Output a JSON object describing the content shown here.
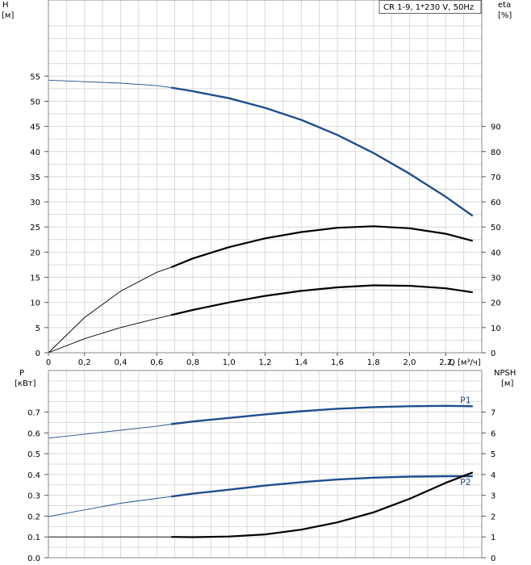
{
  "chart_data": [
    {
      "type": "line",
      "legend": "CR 1-9, 1*230 V, 50Hz",
      "x_label": "Q [м³/ч]",
      "x_ticks": [
        "0",
        "0,2",
        "0,4",
        "0,6",
        "0,8",
        "1,0",
        "1,2",
        "1,4",
        "1,6",
        "1,8",
        "2,0",
        "2,2"
      ],
      "xlim": [
        0,
        2.4
      ],
      "grid": true,
      "y_left": {
        "label_line1": "H",
        "label_line2": "[м]",
        "ticks": [
          "0",
          "5",
          "10",
          "15",
          "20",
          "25",
          "30",
          "35",
          "40",
          "45",
          "50",
          "55"
        ],
        "range": [
          0,
          55
        ]
      },
      "y_right": {
        "label_line1": "eta",
        "label_line2": "[%]",
        "ticks": [
          "0",
          "10",
          "20",
          "30",
          "40",
          "50",
          "60",
          "70",
          "80",
          "90"
        ],
        "range": [
          0,
          90
        ]
      },
      "series": [
        {
          "axis": "left",
          "color": "#1f4e8c",
          "points": [
            [
              0,
              54.2
            ],
            [
              0.2,
              53.9
            ],
            [
              0.4,
              53.6
            ],
            [
              0.6,
              53.1
            ],
            [
              0.68,
              52.7
            ],
            [
              0.8,
              52.0
            ],
            [
              1.0,
              50.6
            ],
            [
              1.2,
              48.7
            ],
            [
              1.4,
              46.3
            ],
            [
              1.6,
              43.3
            ],
            [
              1.8,
              39.7
            ],
            [
              2.0,
              35.6
            ],
            [
              2.2,
              31.0
            ],
            [
              2.35,
              27.2
            ]
          ]
        },
        {
          "axis": "right",
          "color": "#000000",
          "points": [
            [
              0,
              0
            ],
            [
              0.2,
              14
            ],
            [
              0.4,
              24.5
            ],
            [
              0.6,
              32
            ],
            [
              0.68,
              34
            ],
            [
              0.8,
              37.5
            ],
            [
              1.0,
              42
            ],
            [
              1.2,
              45.5
            ],
            [
              1.4,
              48
            ],
            [
              1.6,
              49.7
            ],
            [
              1.8,
              50.3
            ],
            [
              2.0,
              49.5
            ],
            [
              2.2,
              47.3
            ],
            [
              2.35,
              44.5
            ]
          ]
        },
        {
          "axis": "left",
          "color": "#000000",
          "points": [
            [
              0,
              0
            ],
            [
              0.2,
              2.8
            ],
            [
              0.4,
              5.0
            ],
            [
              0.6,
              6.8
            ],
            [
              0.68,
              7.5
            ],
            [
              0.8,
              8.5
            ],
            [
              1.0,
              10.0
            ],
            [
              1.2,
              11.3
            ],
            [
              1.4,
              12.3
            ],
            [
              1.6,
              13.0
            ],
            [
              1.8,
              13.4
            ],
            [
              2.0,
              13.3
            ],
            [
              2.2,
              12.8
            ],
            [
              2.35,
              12.0
            ]
          ]
        }
      ]
    },
    {
      "type": "line",
      "x_ticks": [
        "0",
        "0,2",
        "0,4",
        "0,6",
        "0,8",
        "1,0",
        "1,2",
        "1,4",
        "1,6",
        "1,8",
        "2,0",
        "2,2"
      ],
      "xlim": [
        0,
        2.4
      ],
      "grid": true,
      "y_left": {
        "label_line1": "P",
        "label_line2": "[кВт]",
        "ticks": [
          "0.0",
          "0.1",
          "0.2",
          "0.3",
          "0.4",
          "0.5",
          "0.6",
          "0.7"
        ],
        "range": [
          0,
          0.7
        ]
      },
      "y_right": {
        "label_line1": "NPSH",
        "label_line2": "[м]",
        "ticks": [
          "0",
          "1",
          "2",
          "3",
          "4",
          "5",
          "6",
          "7"
        ],
        "range": [
          0,
          7
        ]
      },
      "series": [
        {
          "name": "P1",
          "axis": "left",
          "color": "#1f4e8c",
          "points": [
            [
              0,
              0.575
            ],
            [
              0.2,
              0.594
            ],
            [
              0.4,
              0.613
            ],
            [
              0.6,
              0.632
            ],
            [
              0.68,
              0.642
            ],
            [
              0.8,
              0.655
            ],
            [
              1.0,
              0.672
            ],
            [
              1.2,
              0.689
            ],
            [
              1.4,
              0.704
            ],
            [
              1.6,
              0.716
            ],
            [
              1.8,
              0.724
            ],
            [
              2.0,
              0.728
            ],
            [
              2.2,
              0.73
            ],
            [
              2.35,
              0.728
            ]
          ]
        },
        {
          "name": "P2",
          "axis": "left",
          "color": "#1f4e8c",
          "points": [
            [
              0,
              0.198
            ],
            [
              0.2,
              0.23
            ],
            [
              0.4,
              0.262
            ],
            [
              0.6,
              0.285
            ],
            [
              0.68,
              0.294
            ],
            [
              0.8,
              0.308
            ],
            [
              1.0,
              0.327
            ],
            [
              1.2,
              0.347
            ],
            [
              1.4,
              0.363
            ],
            [
              1.6,
              0.376
            ],
            [
              1.8,
              0.385
            ],
            [
              2.0,
              0.39
            ],
            [
              2.2,
              0.392
            ],
            [
              2.35,
              0.392
            ]
          ]
        },
        {
          "axis": "right",
          "color": "#000000",
          "points": [
            [
              0,
              1.0
            ],
            [
              0.2,
              1.0
            ],
            [
              0.4,
              1.0
            ],
            [
              0.6,
              1.0
            ],
            [
              0.68,
              1.0
            ],
            [
              0.8,
              0.99
            ],
            [
              1.0,
              1.02
            ],
            [
              1.2,
              1.12
            ],
            [
              1.4,
              1.35
            ],
            [
              1.6,
              1.7
            ],
            [
              1.8,
              2.18
            ],
            [
              2.0,
              2.83
            ],
            [
              2.2,
              3.6
            ],
            [
              2.35,
              4.1
            ]
          ]
        }
      ]
    }
  ]
}
